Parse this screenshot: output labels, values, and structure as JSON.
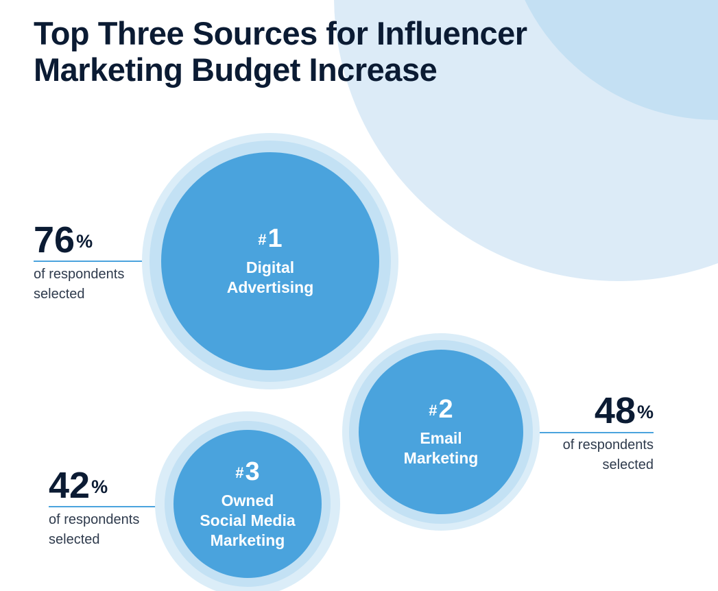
{
  "title_lines": [
    "Top Three Sources for Influencer",
    "Marketing Budget Increase"
  ],
  "chart_data": {
    "type": "bubble",
    "title": "Top Three Sources for Influencer Marketing Budget Increase",
    "unit": "%",
    "stat_desc_line1": "of respondents",
    "stat_desc_line2": "selected",
    "categories": [
      "Digital Advertising",
      "Email Marketing",
      "Owned Social Media Marketing"
    ],
    "values": [
      76,
      48,
      42
    ],
    "items": [
      {
        "rank": "1",
        "label_lines": [
          "Digital",
          "Advertising"
        ],
        "value": 76,
        "stat_side": "left"
      },
      {
        "rank": "2",
        "label_lines": [
          "Email",
          "Marketing"
        ],
        "value": 48,
        "stat_side": "right"
      },
      {
        "rank": "3",
        "label_lines": [
          "Owned",
          "Social Media",
          "Marketing"
        ],
        "value": 42,
        "stat_side": "left"
      }
    ]
  },
  "colors": {
    "bubble": "#4aa3dd",
    "ring_inner": "#c3e1f4",
    "ring_outer": "#dbedf8",
    "background_arc_outer": "#dcebf7",
    "background_arc_inner": "#c4e0f3",
    "title_text": "#0b1b33",
    "leader_line": "#4aa3dd"
  }
}
